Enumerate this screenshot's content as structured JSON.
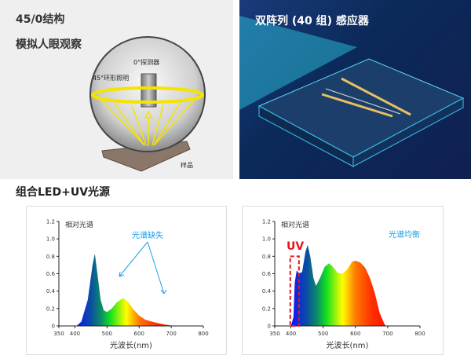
{
  "panel_45_0": {
    "title": "45/0结构",
    "subtitle": "模拟人眼观察",
    "detector_label": "0°探测器",
    "ring_label": "45°环形照明",
    "sample_label": "样品"
  },
  "panel_sensor": {
    "title": "双阵列 (40 组) 感应器"
  },
  "section_title": "组合LED+UV光源",
  "chart_data": [
    {
      "type": "area",
      "ylabel": "相对光谱",
      "xlabel": "光波长(nm)",
      "xlim": [
        350,
        800
      ],
      "ylim": [
        0,
        1.2
      ],
      "xticks": [
        "350",
        "400",
        "500",
        "600",
        "700",
        "800"
      ],
      "yticks": [
        "0",
        "0.2",
        "0.4",
        "0.6",
        "0.8",
        "1.0",
        "1.2"
      ],
      "annotation": "光谱缺失",
      "annotation_color": "#1aa0e6",
      "x": [
        405,
        420,
        440,
        455,
        462,
        470,
        480,
        490,
        500,
        515,
        530,
        550,
        565,
        580,
        600,
        620,
        650,
        680,
        710
      ],
      "y": [
        0,
        0.05,
        0.3,
        0.7,
        0.83,
        0.6,
        0.3,
        0.18,
        0.16,
        0.2,
        0.27,
        0.32,
        0.28,
        0.2,
        0.12,
        0.07,
        0.04,
        0.015,
        0
      ]
    },
    {
      "type": "area",
      "ylabel": "相对光谱",
      "xlabel": "光波长(nm)",
      "xlim": [
        350,
        800
      ],
      "ylim": [
        0,
        1.2
      ],
      "xticks": [
        "350",
        "400",
        "500",
        "600",
        "700",
        "800"
      ],
      "yticks": [
        "0",
        "0.2",
        "0.4",
        "0.6",
        "0.8",
        "1.0",
        "1.2"
      ],
      "annotation": "光谱均衡",
      "annotation_color": "#1aa0e6",
      "uv_label": "UV",
      "uv_color": "#e8141c",
      "uv_range": [
        398,
        425
      ],
      "x": [
        400,
        408,
        412,
        418,
        425,
        435,
        445,
        452,
        460,
        470,
        478,
        490,
        505,
        518,
        530,
        545,
        560,
        575,
        590,
        600,
        615,
        630,
        645,
        660,
        675,
        690,
        695
      ],
      "y": [
        0,
        0.1,
        0.5,
        0.64,
        0.6,
        0.62,
        0.85,
        0.93,
        0.8,
        0.55,
        0.46,
        0.55,
        0.68,
        0.72,
        0.68,
        0.61,
        0.6,
        0.65,
        0.74,
        0.75,
        0.73,
        0.67,
        0.55,
        0.38,
        0.15,
        0.02,
        0
      ]
    }
  ]
}
